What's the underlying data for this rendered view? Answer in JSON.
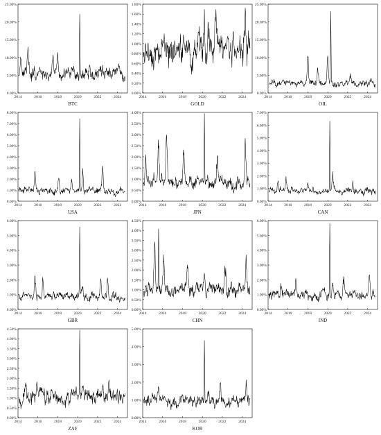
{
  "chart_data": [
    {
      "type": "line",
      "title": "BTC",
      "x_ticks": [
        "2014",
        "2016",
        "2018",
        "2020",
        "2022",
        "2024"
      ],
      "y_ticks": [
        "0.00%",
        "5.00%",
        "10.00%",
        "15.00%",
        "20.00%",
        "25.00%"
      ],
      "ylim": [
        0,
        25
      ],
      "baseline": 5.0,
      "peak": {
        "x": 2020.2,
        "y": 22.5
      },
      "bumps": [
        {
          "x": 2014.3,
          "y": 11.5
        },
        {
          "x": 2015.0,
          "y": 12.0
        },
        {
          "x": 2017.5,
          "y": 10.5
        },
        {
          "x": 2018.0,
          "y": 11.5
        },
        {
          "x": 2021.2,
          "y": 8.5
        },
        {
          "x": 2022.5,
          "y": 7.5
        }
      ]
    },
    {
      "type": "line",
      "title": "GOLD",
      "x_ticks": [
        "2014",
        "2016",
        "2018",
        "2020",
        "2022",
        "2024"
      ],
      "y_ticks": [
        "0.00%",
        "0.20%",
        "0.40%",
        "0.60%",
        "0.80%",
        "1.00%",
        "1.20%",
        "1.40%",
        "1.60%",
        "1.80%"
      ],
      "ylim": [
        0,
        1.8
      ],
      "baseline": 0.85,
      "peak": {
        "x": 2020.2,
        "y": 1.75
      },
      "bumps": [
        {
          "x": 2016.2,
          "y": 1.2
        },
        {
          "x": 2019.0,
          "y": 0.55
        },
        {
          "x": 2020.6,
          "y": 1.3
        },
        {
          "x": 2021.3,
          "y": 1.2
        },
        {
          "x": 2022.5,
          "y": 1.25
        },
        {
          "x": 2024.3,
          "y": 1.4
        }
      ]
    },
    {
      "type": "line",
      "title": "OIL",
      "x_ticks": [
        "2014",
        "2016",
        "2018",
        "2020",
        "2022",
        "2024"
      ],
      "y_ticks": [
        "0.00%",
        "5.00%",
        "10.00%",
        "15.00%",
        "20.00%",
        "25.00%"
      ],
      "ylim": [
        0,
        25
      ],
      "baseline": 2.5,
      "peak": {
        "x": 2020.3,
        "y": 23.0
      },
      "bumps": [
        {
          "x": 2018.0,
          "y": 10.0
        },
        {
          "x": 2019.0,
          "y": 7.0
        },
        {
          "x": 2020.0,
          "y": 11.0
        },
        {
          "x": 2022.3,
          "y": 4.5
        }
      ]
    },
    {
      "type": "line",
      "title": "USA",
      "x_ticks": [
        "2014",
        "2016",
        "2018",
        "2020",
        "2022",
        "2024"
      ],
      "y_ticks": [
        "0.00%",
        "1.00%",
        "2.00%",
        "3.00%",
        "4.00%",
        "5.00%",
        "6.00%",
        "7.00%",
        "8.00%"
      ],
      "ylim": [
        0,
        8
      ],
      "baseline": 0.85,
      "peak": {
        "x": 2020.2,
        "y": 7.4
      },
      "bumps": [
        {
          "x": 2015.7,
          "y": 2.6
        },
        {
          "x": 2018.1,
          "y": 2.4
        },
        {
          "x": 2019.4,
          "y": 2.0
        },
        {
          "x": 2020.5,
          "y": 3.2
        },
        {
          "x": 2022.5,
          "y": 2.8
        }
      ]
    },
    {
      "type": "line",
      "title": "JPN",
      "x_ticks": [
        "2014",
        "2016",
        "2018",
        "2020",
        "2022",
        "2024"
      ],
      "y_ticks": [
        "0.00%",
        "0.50%",
        "1.00%",
        "1.50%",
        "2.00%",
        "2.50%",
        "3.00%",
        "3.50%",
        "4.00%"
      ],
      "ylim": [
        0,
        4
      ],
      "baseline": 0.8,
      "peak": {
        "x": 2020.2,
        "y": 3.9
      },
      "bumps": [
        {
          "x": 2014.3,
          "y": 1.8
        },
        {
          "x": 2015.6,
          "y": 2.8
        },
        {
          "x": 2016.4,
          "y": 3.2
        },
        {
          "x": 2018.1,
          "y": 2.2
        },
        {
          "x": 2021.5,
          "y": 2.2
        },
        {
          "x": 2024.3,
          "y": 2.8
        }
      ]
    },
    {
      "type": "line",
      "title": "CAN",
      "x_ticks": [
        "2014",
        "2016",
        "2018",
        "2020",
        "2022",
        "2024"
      ],
      "y_ticks": [
        "0.00%",
        "1.00%",
        "2.00%",
        "3.00%",
        "4.00%",
        "5.00%",
        "6.00%",
        "7.00%"
      ],
      "ylim": [
        0,
        7
      ],
      "baseline": 0.75,
      "peak": {
        "x": 2020.2,
        "y": 6.4
      },
      "bumps": [
        {
          "x": 2015.0,
          "y": 1.7
        },
        {
          "x": 2015.8,
          "y": 1.8
        },
        {
          "x": 2018.0,
          "y": 1.3
        },
        {
          "x": 2020.5,
          "y": 2.0
        },
        {
          "x": 2022.5,
          "y": 1.3
        }
      ]
    },
    {
      "type": "line",
      "title": "GBR",
      "x_ticks": [
        "2014",
        "2016",
        "2018",
        "2020",
        "2022",
        "2024"
      ],
      "y_ticks": [
        "0.00%",
        "1.00%",
        "2.00%",
        "3.00%",
        "4.00%",
        "5.00%",
        "6.00%"
      ],
      "ylim": [
        0,
        6
      ],
      "baseline": 0.75,
      "peak": {
        "x": 2020.2,
        "y": 5.3
      },
      "bumps": [
        {
          "x": 2015.7,
          "y": 2.4
        },
        {
          "x": 2016.5,
          "y": 2.1
        },
        {
          "x": 2020.5,
          "y": 1.7
        },
        {
          "x": 2022.3,
          "y": 2.1
        },
        {
          "x": 2023.0,
          "y": 2.0
        }
      ]
    },
    {
      "type": "line",
      "title": "CHN",
      "x_ticks": [
        "2014",
        "2016",
        "2018",
        "2020",
        "2022",
        "2024"
      ],
      "y_ticks": [
        "0.00%",
        "0.50%",
        "1.00%",
        "1.50%",
        "2.00%",
        "2.50%",
        "3.00%",
        "3.50%",
        "4.00%",
        "4.50%"
      ],
      "ylim": [
        0,
        4.5
      ],
      "baseline": 0.95,
      "peak": {
        "x": 2015.6,
        "y": 4.1
      },
      "bumps": [
        {
          "x": 2015.2,
          "y": 3.3
        },
        {
          "x": 2016.1,
          "y": 2.7
        },
        {
          "x": 2018.5,
          "y": 2.0
        },
        {
          "x": 2020.2,
          "y": 2.0
        },
        {
          "x": 2022.3,
          "y": 2.2
        },
        {
          "x": 2024.4,
          "y": 2.4
        }
      ]
    },
    {
      "type": "line",
      "title": "IND",
      "x_ticks": [
        "2014",
        "2016",
        "2018",
        "2020",
        "2022",
        "2024"
      ],
      "y_ticks": [
        "0.00%",
        "1.00%",
        "2.00%",
        "3.00%",
        "4.00%",
        "5.00%",
        "6.00%"
      ],
      "ylim": [
        0,
        6
      ],
      "baseline": 0.9,
      "peak": {
        "x": 2020.2,
        "y": 5.6
      },
      "bumps": [
        {
          "x": 2015.3,
          "y": 1.6
        },
        {
          "x": 2016.8,
          "y": 2.1
        },
        {
          "x": 2020.5,
          "y": 1.8
        },
        {
          "x": 2021.6,
          "y": 2.0
        },
        {
          "x": 2024.2,
          "y": 2.1
        }
      ]
    },
    {
      "type": "line",
      "title": "ZAF",
      "x_ticks": [
        "2014",
        "2016",
        "2018",
        "2020",
        "2022",
        "2024"
      ],
      "y_ticks": [
        "0.00%",
        "0.50%",
        "1.00%",
        "1.50%",
        "2.00%",
        "2.50%",
        "3.00%",
        "3.50%",
        "4.00%",
        "4.50%"
      ],
      "ylim": [
        0,
        4.5
      ],
      "baseline": 1.0,
      "peak": {
        "x": 2020.2,
        "y": 4.3
      },
      "bumps": [
        {
          "x": 2014.8,
          "y": 1.5
        },
        {
          "x": 2015.9,
          "y": 1.7
        },
        {
          "x": 2016.6,
          "y": 1.6
        },
        {
          "x": 2020.5,
          "y": 1.8
        },
        {
          "x": 2022.5,
          "y": 1.8
        },
        {
          "x": 2023.1,
          "y": 1.9
        }
      ]
    },
    {
      "type": "line",
      "title": "KOR",
      "x_ticks": [
        "2014",
        "2016",
        "2018",
        "2020",
        "2022",
        "2024"
      ],
      "y_ticks": [
        "0.00%",
        "1.00%",
        "2.00%",
        "3.00%",
        "4.00%",
        "5.00%"
      ],
      "ylim": [
        0,
        5
      ],
      "baseline": 0.85,
      "peak": {
        "x": 2020.2,
        "y": 4.4
      },
      "bumps": [
        {
          "x": 2015.6,
          "y": 1.6
        },
        {
          "x": 2018.0,
          "y": 1.4
        },
        {
          "x": 2020.6,
          "y": 1.8
        },
        {
          "x": 2021.8,
          "y": 1.9
        },
        {
          "x": 2024.4,
          "y": 1.6
        }
      ]
    }
  ]
}
